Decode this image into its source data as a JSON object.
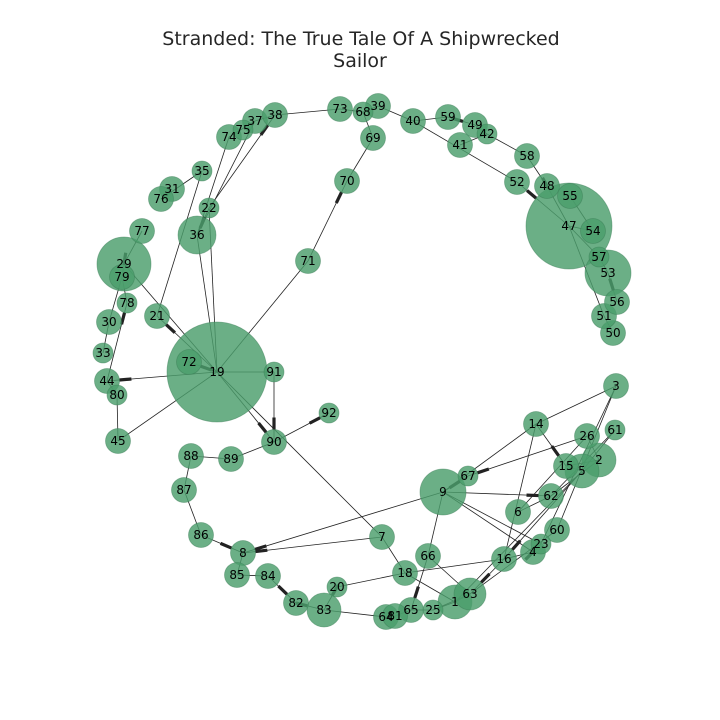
{
  "title": {
    "line1": "Stranded: The True Tale Of A Shipwrecked",
    "line2": "Sailor"
  },
  "colors": {
    "node": "#4b9e6b",
    "edge": "#222222",
    "background": "#ffffff"
  },
  "graph": {
    "nodes": [
      {
        "id": "1",
        "label": "1",
        "size": "m"
      },
      {
        "id": "2",
        "label": "2",
        "size": "m"
      },
      {
        "id": "3",
        "label": "3",
        "size": "s"
      },
      {
        "id": "4",
        "label": "4",
        "size": "s"
      },
      {
        "id": "5",
        "label": "5",
        "size": "m"
      },
      {
        "id": "6",
        "label": "6",
        "size": "s"
      },
      {
        "id": "7",
        "label": "7",
        "size": "s"
      },
      {
        "id": "8",
        "label": "8",
        "size": "s"
      },
      {
        "id": "9",
        "label": "9",
        "size": "l"
      },
      {
        "id": "14",
        "label": "14",
        "size": "s"
      },
      {
        "id": "15",
        "label": "15",
        "size": "s"
      },
      {
        "id": "16",
        "label": "16",
        "size": "s"
      },
      {
        "id": "18",
        "label": "18",
        "size": "s"
      },
      {
        "id": "19",
        "label": "19",
        "size": "xl"
      },
      {
        "id": "20",
        "label": "20",
        "size": "xs"
      },
      {
        "id": "21",
        "label": "21",
        "size": "s"
      },
      {
        "id": "22",
        "label": "22",
        "size": "xs"
      },
      {
        "id": "23",
        "label": "23",
        "size": "xs"
      },
      {
        "id": "25",
        "label": "25",
        "size": "xs"
      },
      {
        "id": "26",
        "label": "26",
        "size": "s"
      },
      {
        "id": "29",
        "label": "29",
        "size": "l"
      },
      {
        "id": "30",
        "label": "30",
        "size": "s"
      },
      {
        "id": "31",
        "label": "31",
        "size": "s"
      },
      {
        "id": "33",
        "label": "33",
        "size": "xs"
      },
      {
        "id": "35",
        "label": "35",
        "size": "xs"
      },
      {
        "id": "36",
        "label": "36",
        "size": "m"
      },
      {
        "id": "37",
        "label": "37",
        "size": "s"
      },
      {
        "id": "38",
        "label": "38",
        "size": "s"
      },
      {
        "id": "39",
        "label": "39",
        "size": "s"
      },
      {
        "id": "40",
        "label": "40",
        "size": "s"
      },
      {
        "id": "41",
        "label": "41",
        "size": "s"
      },
      {
        "id": "42",
        "label": "42",
        "size": "xs"
      },
      {
        "id": "44",
        "label": "44",
        "size": "s"
      },
      {
        "id": "45",
        "label": "45",
        "size": "s"
      },
      {
        "id": "47",
        "label": "47",
        "size": "xxl"
      },
      {
        "id": "48",
        "label": "48",
        "size": "s"
      },
      {
        "id": "49",
        "label": "49",
        "size": "s"
      },
      {
        "id": "50",
        "label": "50",
        "size": "s"
      },
      {
        "id": "51",
        "label": "51",
        "size": "s"
      },
      {
        "id": "52",
        "label": "52",
        "size": "s"
      },
      {
        "id": "53",
        "label": "53",
        "size": "m"
      },
      {
        "id": "54",
        "label": "54",
        "size": "s"
      },
      {
        "id": "55",
        "label": "55",
        "size": "s"
      },
      {
        "id": "56",
        "label": "56",
        "size": "s"
      },
      {
        "id": "57",
        "label": "57",
        "size": "xs"
      },
      {
        "id": "58",
        "label": "58",
        "size": "s"
      },
      {
        "id": "59",
        "label": "59",
        "size": "s"
      },
      {
        "id": "60",
        "label": "60",
        "size": "s"
      },
      {
        "id": "61",
        "label": "61",
        "size": "xs"
      },
      {
        "id": "62",
        "label": "62",
        "size": "s"
      },
      {
        "id": "63",
        "label": "63",
        "size": "m"
      },
      {
        "id": "64",
        "label": "64",
        "size": "s"
      },
      {
        "id": "65",
        "label": "65",
        "size": "s"
      },
      {
        "id": "66",
        "label": "66",
        "size": "s"
      },
      {
        "id": "67",
        "label": "67",
        "size": "xs"
      },
      {
        "id": "68",
        "label": "68",
        "size": "xs"
      },
      {
        "id": "69",
        "label": "69",
        "size": "s"
      },
      {
        "id": "70",
        "label": "70",
        "size": "s"
      },
      {
        "id": "71",
        "label": "71",
        "size": "s"
      },
      {
        "id": "72",
        "label": "72",
        "size": "s"
      },
      {
        "id": "73",
        "label": "73",
        "size": "s"
      },
      {
        "id": "74",
        "label": "74",
        "size": "s"
      },
      {
        "id": "75",
        "label": "75",
        "size": "xs"
      },
      {
        "id": "76",
        "label": "76",
        "size": "s"
      },
      {
        "id": "77",
        "label": "77",
        "size": "s"
      },
      {
        "id": "78",
        "label": "78",
        "size": "xs"
      },
      {
        "id": "79",
        "label": "79",
        "size": "s"
      },
      {
        "id": "80",
        "label": "80",
        "size": "xs"
      },
      {
        "id": "81",
        "label": "81",
        "size": "s"
      },
      {
        "id": "82",
        "label": "82",
        "size": "s"
      },
      {
        "id": "83",
        "label": "83",
        "size": "m"
      },
      {
        "id": "84",
        "label": "84",
        "size": "s"
      },
      {
        "id": "85",
        "label": "85",
        "size": "s"
      },
      {
        "id": "86",
        "label": "86",
        "size": "s"
      },
      {
        "id": "87",
        "label": "87",
        "size": "s"
      },
      {
        "id": "88",
        "label": "88",
        "size": "s"
      },
      {
        "id": "89",
        "label": "89",
        "size": "s"
      },
      {
        "id": "90",
        "label": "90",
        "size": "s"
      },
      {
        "id": "91",
        "label": "91",
        "size": "xs"
      },
      {
        "id": "92",
        "label": "92",
        "size": "xs"
      }
    ],
    "edges": [
      [
        "19",
        "72"
      ],
      [
        "19",
        "91"
      ],
      [
        "19",
        "44"
      ],
      [
        "19",
        "45"
      ],
      [
        "19",
        "90"
      ],
      [
        "19",
        "71"
      ],
      [
        "19",
        "21"
      ],
      [
        "19",
        "36"
      ],
      [
        "19",
        "22"
      ],
      [
        "19",
        "29"
      ],
      [
        "36",
        "22"
      ],
      [
        "36",
        "37"
      ],
      [
        "36",
        "74"
      ],
      [
        "22",
        "38"
      ],
      [
        "21",
        "35"
      ],
      [
        "35",
        "76"
      ],
      [
        "76",
        "31"
      ],
      [
        "77",
        "29"
      ],
      [
        "29",
        "79"
      ],
      [
        "79",
        "78"
      ],
      [
        "79",
        "30"
      ],
      [
        "33",
        "30"
      ],
      [
        "44",
        "80"
      ],
      [
        "44",
        "78"
      ],
      [
        "45",
        "80"
      ],
      [
        "74",
        "37"
      ],
      [
        "37",
        "38"
      ],
      [
        "38",
        "73"
      ],
      [
        "73",
        "68"
      ],
      [
        "68",
        "39"
      ],
      [
        "39",
        "40"
      ],
      [
        "40",
        "59"
      ],
      [
        "59",
        "49"
      ],
      [
        "49",
        "42"
      ],
      [
        "42",
        "58"
      ],
      [
        "41",
        "42"
      ],
      [
        "69",
        "68"
      ],
      [
        "70",
        "69"
      ],
      [
        "71",
        "70"
      ],
      [
        "58",
        "48"
      ],
      [
        "52",
        "47"
      ],
      [
        "48",
        "47"
      ],
      [
        "55",
        "54"
      ],
      [
        "47",
        "54"
      ],
      [
        "47",
        "57"
      ],
      [
        "57",
        "53"
      ],
      [
        "53",
        "56"
      ],
      [
        "47",
        "51"
      ],
      [
        "51",
        "50"
      ],
      [
        "52",
        "40"
      ],
      [
        "90",
        "91"
      ],
      [
        "90",
        "92"
      ],
      [
        "90",
        "89"
      ],
      [
        "89",
        "88"
      ],
      [
        "88",
        "87"
      ],
      [
        "87",
        "86"
      ],
      [
        "86",
        "8"
      ],
      [
        "8",
        "85"
      ],
      [
        "85",
        "84"
      ],
      [
        "84",
        "82"
      ],
      [
        "82",
        "83"
      ],
      [
        "83",
        "64"
      ],
      [
        "64",
        "81"
      ],
      [
        "81",
        "65"
      ],
      [
        "65",
        "25"
      ],
      [
        "25",
        "1"
      ],
      [
        "1",
        "63"
      ],
      [
        "9",
        "67"
      ],
      [
        "9",
        "62"
      ],
      [
        "9",
        "8"
      ],
      [
        "9",
        "66"
      ],
      [
        "9",
        "4"
      ],
      [
        "9",
        "23"
      ],
      [
        "9",
        "14"
      ],
      [
        "14",
        "15"
      ],
      [
        "14",
        "3"
      ],
      [
        "15",
        "5"
      ],
      [
        "15",
        "2"
      ],
      [
        "26",
        "2"
      ],
      [
        "26",
        "67"
      ],
      [
        "26",
        "6"
      ],
      [
        "62",
        "6"
      ],
      [
        "62",
        "2"
      ],
      [
        "62",
        "61"
      ],
      [
        "3",
        "60"
      ],
      [
        "3",
        "23"
      ],
      [
        "61",
        "5"
      ],
      [
        "5",
        "16"
      ],
      [
        "5",
        "1"
      ],
      [
        "4",
        "23"
      ],
      [
        "4",
        "16"
      ],
      [
        "16",
        "63"
      ],
      [
        "16",
        "18"
      ],
      [
        "63",
        "66"
      ],
      [
        "63",
        "25"
      ],
      [
        "66",
        "65"
      ],
      [
        "18",
        "20"
      ],
      [
        "18",
        "1"
      ],
      [
        "20",
        "83"
      ],
      [
        "7",
        "8"
      ],
      [
        "7",
        "18"
      ],
      [
        "7",
        "19"
      ],
      [
        "14",
        "16"
      ],
      [
        "60",
        "63"
      ]
    ],
    "arrows": [
      [
        "19",
        "72"
      ],
      [
        "19",
        "44"
      ],
      [
        "19",
        "90"
      ],
      [
        "19",
        "21"
      ],
      [
        "36",
        "22"
      ],
      [
        "22",
        "38"
      ],
      [
        "29",
        "79"
      ],
      [
        "44",
        "78"
      ],
      [
        "71",
        "70"
      ],
      [
        "52",
        "47"
      ],
      [
        "48",
        "47"
      ],
      [
        "9",
        "67"
      ],
      [
        "9",
        "62"
      ],
      [
        "14",
        "15"
      ],
      [
        "26",
        "67"
      ],
      [
        "7",
        "8"
      ],
      [
        "9",
        "8"
      ],
      [
        "86",
        "8"
      ],
      [
        "82",
        "83"
      ],
      [
        "84",
        "82"
      ],
      [
        "20",
        "83"
      ],
      [
        "4",
        "23"
      ],
      [
        "16",
        "63"
      ],
      [
        "66",
        "65"
      ],
      [
        "59",
        "49"
      ],
      [
        "53",
        "56"
      ],
      [
        "91",
        "90"
      ],
      [
        "90",
        "92"
      ],
      [
        "5",
        "16"
      ]
    ]
  }
}
